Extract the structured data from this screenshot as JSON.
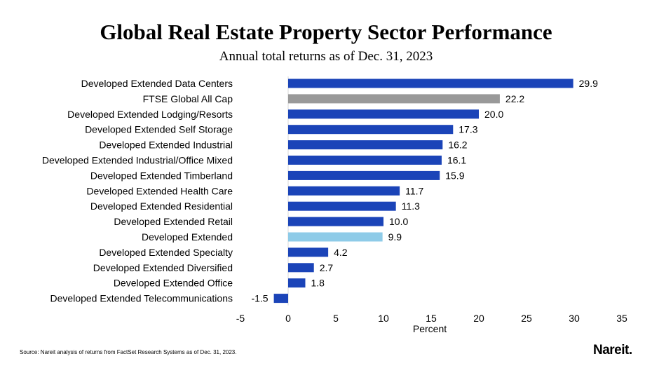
{
  "chart_data": {
    "type": "bar",
    "orientation": "horizontal",
    "title": "Global Real Estate Property Sector Performance",
    "subtitle": "Annual total returns as of Dec. 31, 2023",
    "xlabel": "Percent",
    "ylabel": "",
    "xlim": [
      -5,
      35
    ],
    "xticks": [
      -5,
      0,
      5,
      10,
      15,
      20,
      25,
      30,
      35
    ],
    "grid": false,
    "categories": [
      "Developed Extended Data Centers",
      "FTSE Global All Cap",
      "Developed Extended Lodging/Resorts",
      "Developed Extended Self Storage",
      "Developed Extended Industrial",
      "Developed Extended Industrial/Office Mixed",
      "Developed Extended Timberland",
      "Developed Extended Health Care",
      "Developed Extended Residential",
      "Developed Extended Retail",
      "Developed Extended",
      "Developed Extended Specialty",
      "Developed Extended Diversified",
      "Developed Extended Office",
      "Developed Extended Telecommunications"
    ],
    "values": [
      29.9,
      22.2,
      20.0,
      17.3,
      16.2,
      16.1,
      15.9,
      11.7,
      11.3,
      10.0,
      9.9,
      4.2,
      2.7,
      1.8,
      -1.5
    ],
    "data_labels": [
      "29.9",
      "22.2",
      "20.0",
      "17.3",
      "16.2",
      "16.1",
      "15.9",
      "11.7",
      "11.3",
      "10.0",
      "9.9",
      "4.2",
      "2.7",
      "1.8",
      "-1.5"
    ],
    "colors": {
      "default": "#1b44b8",
      "FTSE Global All Cap": "#999999",
      "Developed Extended": "#8ecbe8"
    }
  },
  "footer": {
    "source": "Source: Nareit analysis of returns from FactSet Research Systems as of Dec. 31, 2023.",
    "logo": "Nareit."
  }
}
